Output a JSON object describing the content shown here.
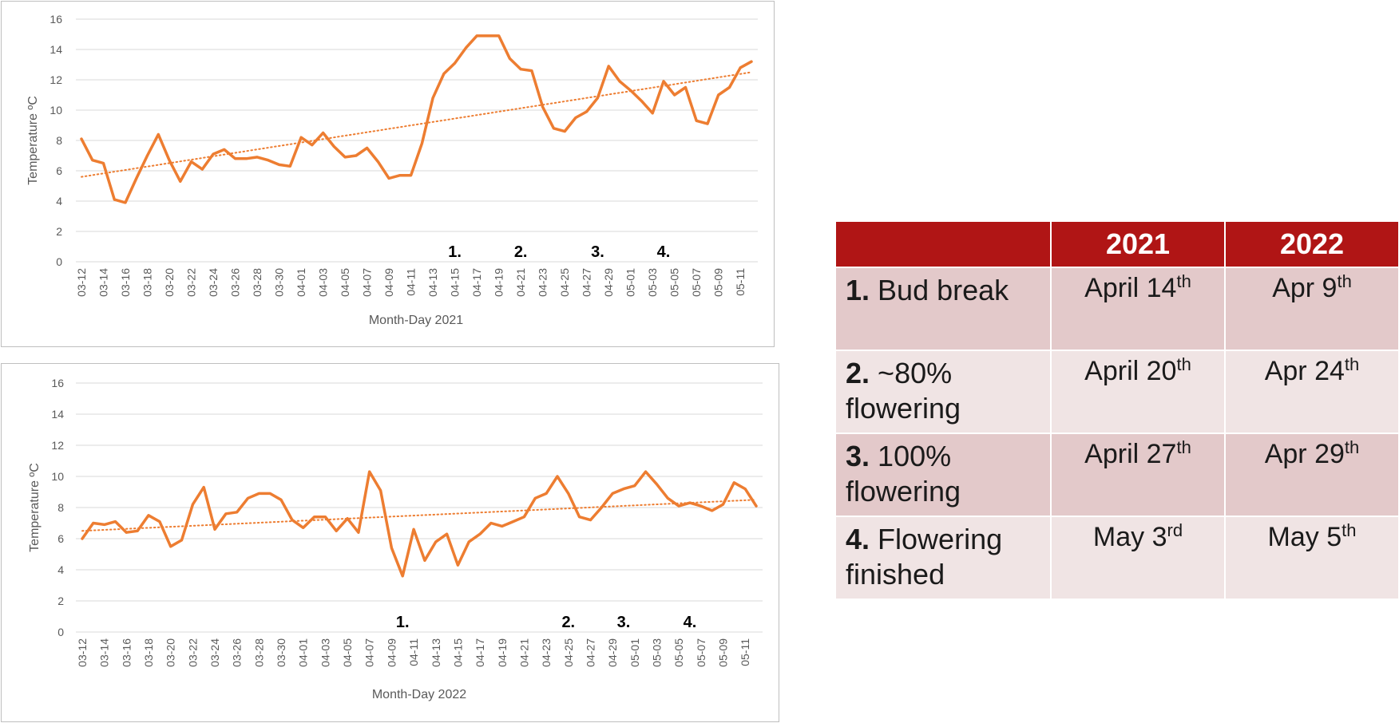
{
  "chart_data": [
    {
      "type": "line",
      "xlabel": "Month-Day 2021",
      "ylabel": "Temperature ºC",
      "ylim": [
        0,
        16
      ],
      "yticks": [
        "0",
        "2",
        "4",
        "6",
        "8",
        "10",
        "12",
        "14",
        "16"
      ],
      "grid": true,
      "trendline": "linear, dotted",
      "tick_labels": [
        "03-12",
        "03-14",
        "03-16",
        "03-18",
        "03-20",
        "03-22",
        "03-24",
        "03-26",
        "03-28",
        "03-30",
        "04-01",
        "04-03",
        "04-05",
        "04-07",
        "04-09",
        "04-11",
        "04-13",
        "04-15",
        "04-17",
        "04-19",
        "04-21",
        "04-23",
        "04-25",
        "04-27",
        "04-29",
        "05-01",
        "05-03",
        "05-05",
        "05-07",
        "05-09",
        "05-11"
      ],
      "values": [
        8.1,
        6.7,
        6.5,
        4.1,
        3.9,
        5.5,
        7.0,
        8.4,
        6.7,
        5.3,
        6.6,
        6.1,
        7.1,
        7.4,
        6.8,
        6.8,
        6.9,
        6.7,
        6.4,
        6.3,
        8.2,
        7.7,
        8.5,
        7.6,
        6.9,
        7.0,
        7.5,
        6.6,
        5.5,
        5.7,
        5.7,
        7.8,
        10.8,
        12.4,
        13.1,
        14.1,
        14.9,
        14.9,
        14.9,
        13.4,
        12.7,
        12.6,
        10.2,
        8.8,
        8.6,
        9.5,
        9.9,
        10.8,
        12.9,
        11.9,
        11.3,
        10.6,
        9.8,
        11.9,
        11.0,
        11.5,
        9.3,
        9.1,
        11.0,
        11.5,
        12.8,
        13.2
      ],
      "trend": [
        5.6,
        12.5
      ],
      "stage_markers": [
        {
          "label": "1.",
          "x": "04-14"
        },
        {
          "label": "2.",
          "x": "04-20"
        },
        {
          "label": "3.",
          "x": "04-27"
        },
        {
          "label": "4.",
          "x": "05-03"
        }
      ]
    },
    {
      "type": "line",
      "xlabel": "Month-Day 2022",
      "ylabel": "Temperature ºC",
      "ylim": [
        0,
        16
      ],
      "yticks": [
        "0",
        "2",
        "4",
        "6",
        "8",
        "10",
        "12",
        "14",
        "16"
      ],
      "grid": true,
      "trendline": "linear, dotted",
      "tick_labels": [
        "03-12",
        "03-14",
        "03-16",
        "03-18",
        "03-20",
        "03-22",
        "03-24",
        "03-26",
        "03-28",
        "03-30",
        "04-01",
        "04-03",
        "04-05",
        "04-07",
        "04-09",
        "04-11",
        "04-13",
        "04-15",
        "04-17",
        "04-19",
        "04-21",
        "04-23",
        "04-25",
        "04-27",
        "04-29",
        "05-01",
        "05-03",
        "05-05",
        "05-07",
        "05-09",
        "05-11"
      ],
      "values": [
        6.0,
        7.0,
        6.9,
        7.1,
        6.4,
        6.5,
        7.5,
        7.1,
        5.5,
        5.9,
        8.2,
        9.3,
        6.6,
        7.6,
        7.7,
        8.6,
        8.9,
        8.9,
        8.5,
        7.2,
        6.7,
        7.4,
        7.4,
        6.5,
        7.3,
        6.4,
        10.3,
        9.1,
        5.4,
        3.6,
        6.6,
        4.6,
        5.8,
        6.3,
        4.3,
        5.8,
        6.3,
        7.0,
        6.8,
        7.1,
        7.4,
        8.6,
        8.9,
        10.0,
        8.9,
        7.4,
        7.2,
        8.0,
        8.9,
        9.2,
        9.4,
        10.3,
        9.5,
        8.6,
        8.1,
        8.3,
        8.1,
        7.8,
        8.2,
        9.6,
        9.2,
        8.1
      ],
      "trend": [
        6.5,
        8.5
      ],
      "stage_markers": [
        {
          "label": "1.",
          "x": "04-09"
        },
        {
          "label": "2.",
          "x": "04-24"
        },
        {
          "label": "3.",
          "x": "04-29"
        },
        {
          "label": "4.",
          "x": "05-05"
        }
      ]
    }
  ],
  "colors": {
    "line": "#ed7d31",
    "header_bg": "#b01515",
    "row_dark": "#e3c9ca",
    "row_light": "#f0e4e4"
  },
  "table": {
    "headers": [
      "",
      "2021",
      "2022"
    ],
    "rows": [
      {
        "num": "1.",
        "label": "Bud break",
        "d2021": "April 14",
        "s2021": "th",
        "d2022": "Apr 9",
        "s2022": "th"
      },
      {
        "num": "2.",
        "label": "~80% flowering",
        "d2021": "April 20",
        "s2021": "th",
        "d2022": "Apr 24",
        "s2022": "th"
      },
      {
        "num": "3.",
        "label": "100% flowering",
        "d2021": "April 27",
        "s2021": "th",
        "d2022": "Apr 29",
        "s2022": "th"
      },
      {
        "num": "4.",
        "label": "Flowering finished",
        "d2021": "May 3",
        "s2021": "rd",
        "d2022": "May 5",
        "s2022": "th"
      }
    ]
  }
}
